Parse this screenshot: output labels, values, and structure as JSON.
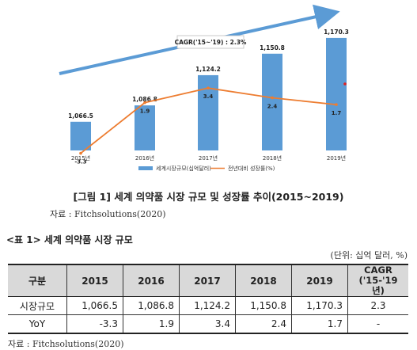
{
  "chart_data": {
    "type": "bar+line",
    "categories": [
      "2015년",
      "2016년",
      "2017년",
      "2018년",
      "2019년"
    ],
    "series": [
      {
        "name": "세계시장규모(십억달러)",
        "type": "bar",
        "values": [
          1066.5,
          1086.8,
          1124.2,
          1150.8,
          1170.3
        ],
        "labels": [
          "1,066.5",
          "1,086.8",
          "1,124.2",
          "1,150.8",
          "1,170.3"
        ]
      },
      {
        "name": "전년대비 성장률(%)",
        "type": "line",
        "values": [
          -3.3,
          1.9,
          3.4,
          2.4,
          1.7
        ],
        "labels": [
          "-3.3",
          "1.9",
          "3.4",
          "2.4",
          "1.7"
        ]
      }
    ],
    "annotation": "CAGR('15~'19) : 2.3%",
    "legend_position": "bottom",
    "colors": {
      "bar": "#5b9bd5",
      "line": "#ed7d31",
      "arrow": "#5b9bd5"
    }
  },
  "figure_caption": "[그림 1]  세계 의약품 시장 규모 및 성장률 추이(2015~2019)",
  "figure_source": "자료 : Fitchsolutions(2020)",
  "table": {
    "title": "<표 1>  세계 의약품 시장 규모",
    "unit": "(단위: 십억 달러, %)",
    "headers": [
      "구분",
      "2015",
      "2016",
      "2017",
      "2018",
      "2019"
    ],
    "cagr_header_line1": "CAGR",
    "cagr_header_line2": "('15-'19년)",
    "rows": [
      {
        "label": "시장규모",
        "values": [
          "1,066.5",
          "1,086.8",
          "1,124.2",
          "1,150.8",
          "1,170.3"
        ],
        "cagr": "2.3"
      },
      {
        "label": "YoY",
        "values": [
          "-3.3",
          "1.9",
          "3.4",
          "2.4",
          "1.7"
        ],
        "cagr": "-"
      }
    ]
  },
  "table_source": "자료 : Fitchsolutions(2020)"
}
